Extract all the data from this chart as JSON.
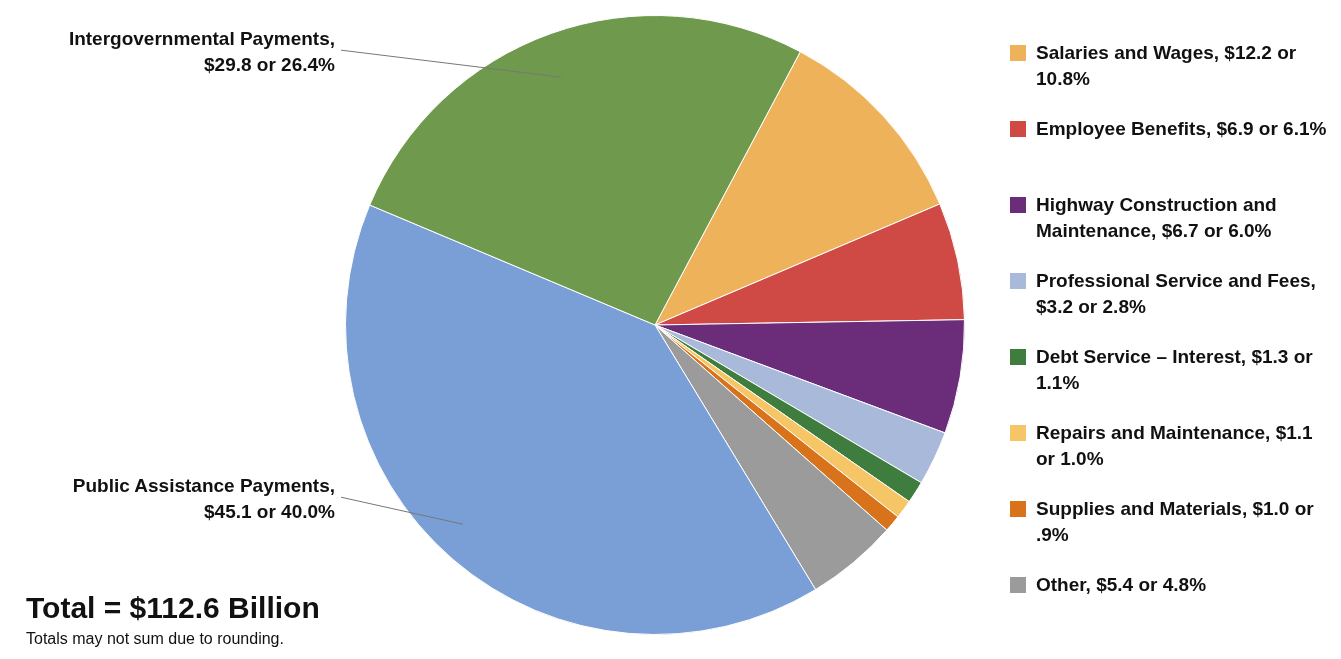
{
  "chart_data": {
    "type": "pie",
    "categories": [
      "Salaries and Wages, $12.2 or 10.8%",
      "Employee Benefits, $6.9 or 6.1%",
      "Highway Construction and Maintenance, $6.7 or 6.0%",
      "Professional Service and Fees, $3.2 or 2.8%",
      "Debt Service – Interest, $1.3 or 1.1%",
      "Repairs and Maintenance, $1.1 or 1.0%",
      "Supplies and Materials, $1.0 or .9%",
      "Other, $5.4 or 4.8%",
      "Public Assistance Payments, $45.1 or 40.0%",
      "Intergovernmental Payments, $29.8 or 26.4%"
    ],
    "values": [
      12.2,
      6.9,
      6.7,
      3.2,
      1.3,
      1.1,
      1.0,
      5.4,
      45.1,
      29.8
    ],
    "colors": [
      "#eeb35a",
      "#cf4a45",
      "#6b2d7a",
      "#a9b9d9",
      "#3f7d3f",
      "#f6c566",
      "#d8731b",
      "#9b9b9b",
      "#7a9fd6",
      "#6f9a4e"
    ],
    "legend": "right",
    "annotations": [
      "Total = $112.6 Billion",
      "Totals may not sum due to rounding."
    ]
  }
}
